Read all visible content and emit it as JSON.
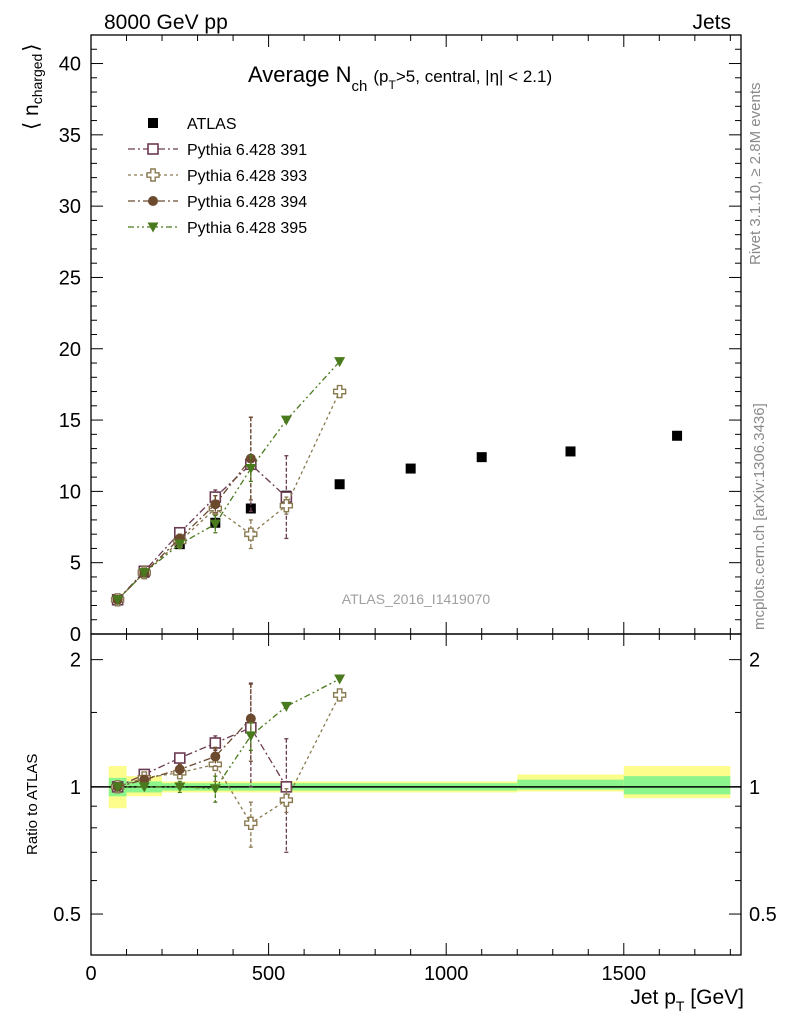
{
  "header": {
    "left": "8000 GeV pp",
    "right": "Jets"
  },
  "side_labels": {
    "rivet": "Rivet 3.1.10, ≥ 2.8M events",
    "mcplots": "mcplots.cern.ch [arXiv:1306.3436]"
  },
  "watermark": "ATLAS_2016_I1419070",
  "chart_data": [
    {
      "type": "scatter",
      "title": {
        "prefix": "Average N",
        "sub1": "ch",
        "paren_open": "(p",
        "sub2": "T",
        "rest": ">5, central, |η| < 2.1)"
      },
      "ylabel": {
        "main": "⟨ n",
        "sub": "charged",
        "close": "⟩"
      },
      "xlim": [
        0,
        1830
      ],
      "ylim": [
        0,
        42
      ],
      "yticks": [
        0,
        5,
        10,
        15,
        20,
        25,
        30,
        35,
        40
      ],
      "series": [
        {
          "name": "ATLAS",
          "color": "#000000",
          "marker": "square-filled",
          "line": "none",
          "points": [
            {
              "x": 75,
              "y": 2.4
            },
            {
              "x": 150,
              "y": 4.3
            },
            {
              "x": 250,
              "y": 6.3
            },
            {
              "x": 350,
              "y": 7.8
            },
            {
              "x": 450,
              "y": 8.8
            },
            {
              "x": 550,
              "y": 9.7
            },
            {
              "x": 700,
              "y": 10.5
            },
            {
              "x": 900,
              "y": 11.6
            },
            {
              "x": 1100,
              "y": 12.4
            },
            {
              "x": 1350,
              "y": 12.8
            },
            {
              "x": 1650,
              "y": 13.9
            }
          ]
        },
        {
          "name": "Pythia 6.428 391",
          "color": "#6b3b52",
          "marker": "square-open",
          "line": "dashdot",
          "points": [
            {
              "x": 75,
              "y": 2.4
            },
            {
              "x": 150,
              "y": 4.4,
              "err": 0.2
            },
            {
              "x": 250,
              "y": 7.1,
              "err": 0.3
            },
            {
              "x": 350,
              "y": 9.6,
              "err": 0.5
            },
            {
              "x": 450,
              "y": 11.9,
              "err": 3.3
            },
            {
              "x": 550,
              "y": 9.6,
              "err": 2.9
            }
          ]
        },
        {
          "name": "Pythia 6.428 393",
          "color": "#8a7a50",
          "marker": "cross-open",
          "line": "dotted",
          "points": [
            {
              "x": 75,
              "y": 2.4
            },
            {
              "x": 150,
              "y": 4.3
            },
            {
              "x": 250,
              "y": 6.5,
              "err": 0.3
            },
            {
              "x": 350,
              "y": 8.8,
              "err": 0.9
            },
            {
              "x": 450,
              "y": 7.0,
              "err": 1.0
            },
            {
              "x": 550,
              "y": 9.0,
              "err": 0.6
            },
            {
              "x": 700,
              "y": 17.0
            }
          ]
        },
        {
          "name": "Pythia 6.428 394",
          "color": "#6b4a2e",
          "marker": "circle-filled",
          "line": "dashdot",
          "points": [
            {
              "x": 75,
              "y": 2.4
            },
            {
              "x": 150,
              "y": 4.3
            },
            {
              "x": 250,
              "y": 6.7,
              "err": 0.3
            },
            {
              "x": 350,
              "y": 9.1,
              "err": 0.6
            },
            {
              "x": 450,
              "y": 12.3,
              "err": 2.9
            }
          ]
        },
        {
          "name": "Pythia 6.428 395",
          "color": "#4a7a1e",
          "marker": "triangle-down-filled",
          "line": "dashdotdot",
          "points": [
            {
              "x": 75,
              "y": 2.4
            },
            {
              "x": 150,
              "y": 4.3
            },
            {
              "x": 250,
              "y": 6.3,
              "err": 0.3
            },
            {
              "x": 350,
              "y": 7.7,
              "err": 0.6
            },
            {
              "x": 450,
              "y": 11.6,
              "err": 0.9
            },
            {
              "x": 550,
              "y": 15.0
            },
            {
              "x": 700,
              "y": 19.1
            }
          ]
        }
      ]
    },
    {
      "type": "scatter",
      "ylabel": "Ratio to ATLAS",
      "xlabel": {
        "main": "Jet p",
        "sub": "T",
        "unit": " [GeV]"
      },
      "xlim": [
        0,
        1830
      ],
      "ylim": [
        0.4,
        2.3
      ],
      "ylog": true,
      "yticks": [
        0.5,
        1,
        2
      ],
      "xticks": [
        0,
        500,
        1000,
        1500
      ],
      "bands": [
        {
          "x0": 50,
          "x1": 100,
          "stat_lo": 0.95,
          "stat_hi": 1.05,
          "tot_lo": 0.89,
          "tot_hi": 1.12
        },
        {
          "x0": 100,
          "x1": 200,
          "stat_lo": 0.97,
          "stat_hi": 1.03,
          "tot_lo": 0.95,
          "tot_hi": 1.06
        },
        {
          "x0": 200,
          "x1": 1200,
          "stat_lo": 0.98,
          "stat_hi": 1.02,
          "tot_lo": 0.97,
          "tot_hi": 1.03
        },
        {
          "x0": 1200,
          "x1": 1500,
          "stat_lo": 0.985,
          "stat_hi": 1.04,
          "tot_lo": 0.975,
          "tot_hi": 1.07
        },
        {
          "x0": 1500,
          "x1": 1800,
          "stat_lo": 0.96,
          "stat_hi": 1.06,
          "tot_lo": 0.94,
          "tot_hi": 1.12
        }
      ],
      "band_colors": {
        "stat": "#8cf58c",
        "total": "#fdfd8c"
      },
      "series": [
        {
          "name": "Pythia 6.428 391",
          "color": "#6b3b52",
          "marker": "square-open",
          "line": "dashdot",
          "points": [
            {
              "x": 75,
              "y": 1.0
            },
            {
              "x": 150,
              "y": 1.07,
              "err": 0.02
            },
            {
              "x": 250,
              "y": 1.17,
              "err": 0.03
            },
            {
              "x": 350,
              "y": 1.27,
              "err": 0.05
            },
            {
              "x": 450,
              "y": 1.38,
              "err": 0.38
            },
            {
              "x": 550,
              "y": 1.0,
              "err": 0.3
            }
          ]
        },
        {
          "name": "Pythia 6.428 393",
          "color": "#8a7a50",
          "marker": "cross-open",
          "line": "dotted",
          "points": [
            {
              "x": 75,
              "y": 1.0
            },
            {
              "x": 150,
              "y": 1.05
            },
            {
              "x": 250,
              "y": 1.08,
              "err": 0.03
            },
            {
              "x": 350,
              "y": 1.13,
              "err": 0.1
            },
            {
              "x": 450,
              "y": 0.82,
              "err": 0.1
            },
            {
              "x": 550,
              "y": 0.93,
              "err": 0.06
            },
            {
              "x": 700,
              "y": 1.65
            }
          ]
        },
        {
          "name": "Pythia 6.428 394",
          "color": "#6b4a2e",
          "marker": "circle-filled",
          "line": "dashdot",
          "points": [
            {
              "x": 75,
              "y": 1.0
            },
            {
              "x": 150,
              "y": 1.04
            },
            {
              "x": 250,
              "y": 1.1,
              "err": 0.03
            },
            {
              "x": 350,
              "y": 1.18,
              "err": 0.06
            },
            {
              "x": 450,
              "y": 1.45,
              "err": 0.3
            }
          ]
        },
        {
          "name": "Pythia 6.428 395",
          "color": "#4a7a1e",
          "marker": "triangle-down-filled",
          "line": "dashdotdot",
          "points": [
            {
              "x": 75,
              "y": 1.0
            },
            {
              "x": 150,
              "y": 1.0
            },
            {
              "x": 250,
              "y": 1.0,
              "err": 0.03
            },
            {
              "x": 350,
              "y": 0.99,
              "err": 0.07
            },
            {
              "x": 450,
              "y": 1.32,
              "err": 0.1
            },
            {
              "x": 550,
              "y": 1.55
            },
            {
              "x": 700,
              "y": 1.8
            }
          ]
        }
      ]
    }
  ]
}
